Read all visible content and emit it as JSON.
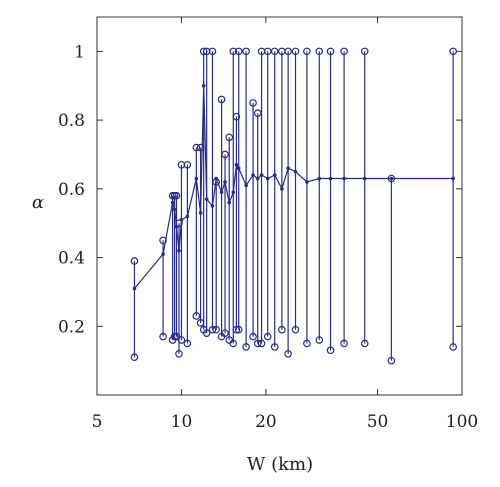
{
  "chart_data": {
    "type": "scatter",
    "title": "",
    "xlabel": "W (km)",
    "ylabel": "α",
    "x_scale": "log",
    "xlim": [
      5,
      100
    ],
    "ylim": [
      0.0,
      1.1
    ],
    "xticks": [
      5,
      10,
      20,
      50,
      100
    ],
    "xtick_labels": [
      "5",
      "10",
      "20",
      "50",
      "100"
    ],
    "yticks": [
      0.2,
      0.4,
      0.6,
      0.8,
      1.0
    ],
    "ytick_labels": [
      "0.2",
      "0.4",
      "0.6",
      "0.8",
      "1"
    ],
    "grid": false,
    "color": "#2b2a8c",
    "ranges": [
      {
        "x": 6.8,
        "low": 0.11,
        "high": 0.39
      },
      {
        "x": 8.6,
        "low": 0.17,
        "high": 0.45
      },
      {
        "x": 9.3,
        "low": 0.16,
        "high": 0.58
      },
      {
        "x": 9.45,
        "low": 0.17,
        "high": 0.58
      },
      {
        "x": 9.6,
        "low": 0.17,
        "high": 0.58
      },
      {
        "x": 9.8,
        "low": 0.12,
        "high": 0.5
      },
      {
        "x": 10.0,
        "low": 0.16,
        "high": 0.67
      },
      {
        "x": 10.5,
        "low": 0.15,
        "high": 0.67
      },
      {
        "x": 11.3,
        "low": 0.23,
        "high": 0.72
      },
      {
        "x": 11.7,
        "low": 0.21,
        "high": 0.72
      },
      {
        "x": 12.0,
        "low": 0.19,
        "high": 1.0
      },
      {
        "x": 12.3,
        "low": 0.18,
        "high": 1.0
      },
      {
        "x": 12.9,
        "low": 0.19,
        "high": 1.0
      },
      {
        "x": 13.3,
        "low": 0.19,
        "high": 0.62
      },
      {
        "x": 13.9,
        "low": 0.17,
        "high": 0.86
      },
      {
        "x": 14.3,
        "low": 0.18,
        "high": 0.7
      },
      {
        "x": 14.8,
        "low": 0.16,
        "high": 0.75
      },
      {
        "x": 15.3,
        "low": 0.15,
        "high": 1.0
      },
      {
        "x": 15.7,
        "low": 0.19,
        "high": 0.81
      },
      {
        "x": 16.0,
        "low": 0.19,
        "high": 1.0
      },
      {
        "x": 17.0,
        "low": 0.14,
        "high": 1.0
      },
      {
        "x": 18.0,
        "low": 0.17,
        "high": 0.85
      },
      {
        "x": 18.7,
        "low": 0.15,
        "high": 0.82
      },
      {
        "x": 19.3,
        "low": 0.15,
        "high": 1.0
      },
      {
        "x": 20.3,
        "low": 0.17,
        "high": 1.0
      },
      {
        "x": 21.5,
        "low": 0.14,
        "high": 1.0
      },
      {
        "x": 22.8,
        "low": 0.19,
        "high": 1.0
      },
      {
        "x": 24.0,
        "low": 0.12,
        "high": 1.0
      },
      {
        "x": 25.5,
        "low": 0.19,
        "high": 1.0
      },
      {
        "x": 28.0,
        "low": 0.15,
        "high": 1.0
      },
      {
        "x": 31.0,
        "low": 0.16,
        "high": 1.0
      },
      {
        "x": 34.0,
        "low": 0.13,
        "high": 1.0
      },
      {
        "x": 38.0,
        "low": 0.15,
        "high": 1.0
      },
      {
        "x": 45.0,
        "low": 0.15,
        "high": 1.0
      },
      {
        "x": 56.0,
        "low": 0.1,
        "high": 0.63
      },
      {
        "x": 93.0,
        "low": 0.14,
        "high": 1.0
      }
    ],
    "mean_line": {
      "x": [
        6.8,
        8.6,
        9.3,
        9.45,
        9.6,
        9.8,
        10.0,
        10.5,
        11.3,
        11.7,
        12.0,
        12.3,
        12.9,
        13.3,
        13.9,
        14.3,
        14.8,
        15.3,
        15.7,
        16.0,
        17.0,
        18.0,
        18.7,
        19.3,
        20.3,
        21.5,
        22.8,
        24.0,
        25.5,
        28.0,
        31.0,
        34.0,
        38.0,
        45.0,
        56.0,
        93.0
      ],
      "y": [
        0.31,
        0.41,
        0.56,
        0.54,
        0.49,
        0.42,
        0.51,
        0.52,
        0.63,
        0.53,
        0.9,
        0.57,
        0.55,
        0.63,
        0.59,
        0.62,
        0.56,
        0.59,
        0.67,
        0.66,
        0.61,
        0.64,
        0.63,
        0.64,
        0.63,
        0.64,
        0.6,
        0.66,
        0.65,
        0.62,
        0.63,
        0.63,
        0.63,
        0.63,
        0.63,
        0.63
      ]
    }
  }
}
